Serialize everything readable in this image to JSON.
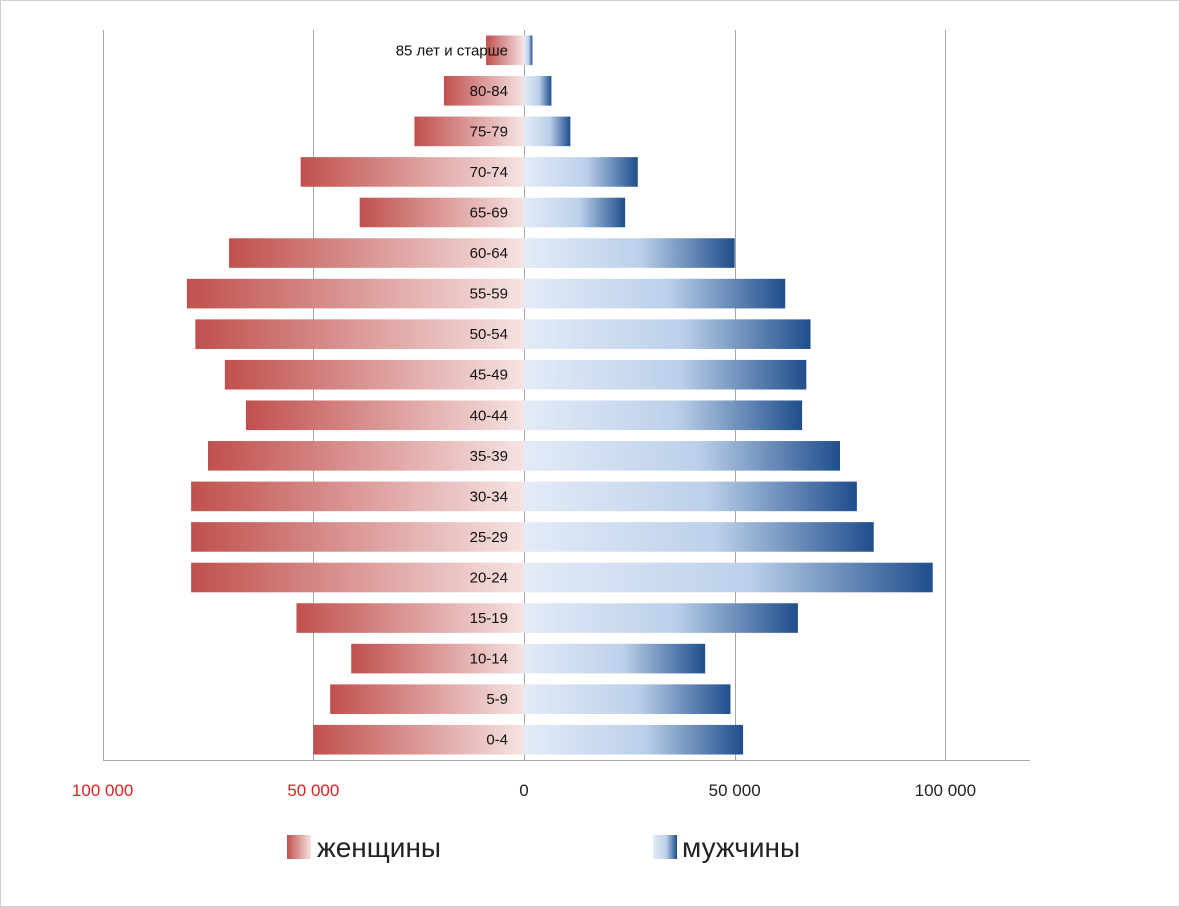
{
  "chart_data": {
    "type": "bar",
    "orientation": "horizontal",
    "categories": [
      "0-4",
      "5-9",
      "10-14",
      "15-19",
      "20-24",
      "25-29",
      "30-34",
      "35-39",
      "40-44",
      "45-49",
      "50-54",
      "55-59",
      "60-64",
      "65-69",
      "70-74",
      "75-79",
      "80-84",
      "85 лет и старше"
    ],
    "series": [
      {
        "name": "женщины",
        "side": "left",
        "color_dark": "#c0504d",
        "color_light": "#f6e3e3",
        "values": [
          50000,
          46000,
          41000,
          54000,
          79000,
          79000,
          79000,
          75000,
          66000,
          71000,
          78000,
          80000,
          70000,
          39000,
          53000,
          26000,
          19000,
          9000
        ]
      },
      {
        "name": "мужчины",
        "side": "right",
        "color_dark": "#1f4e8c",
        "color_light": "#e3ebf7",
        "values": [
          52000,
          49000,
          43000,
          65000,
          97000,
          83000,
          79000,
          75000,
          66000,
          67000,
          68000,
          62000,
          50000,
          24000,
          27000,
          11000,
          6500,
          2000
        ]
      }
    ],
    "xlim": [
      -100000,
      120000
    ],
    "xticks": [
      {
        "value": -100000,
        "label": "100 000",
        "color": "#e02020"
      },
      {
        "value": -50000,
        "label": "50 000",
        "color": "#e02020"
      },
      {
        "value": 0,
        "label": "0",
        "color": "#222222"
      },
      {
        "value": 50000,
        "label": "50 000",
        "color": "#222222"
      },
      {
        "value": 100000,
        "label": "100 000",
        "color": "#222222"
      }
    ],
    "grid": true,
    "legend_position": "bottom"
  },
  "legend": {
    "female_label": "женщины",
    "male_label": "мужчины"
  }
}
